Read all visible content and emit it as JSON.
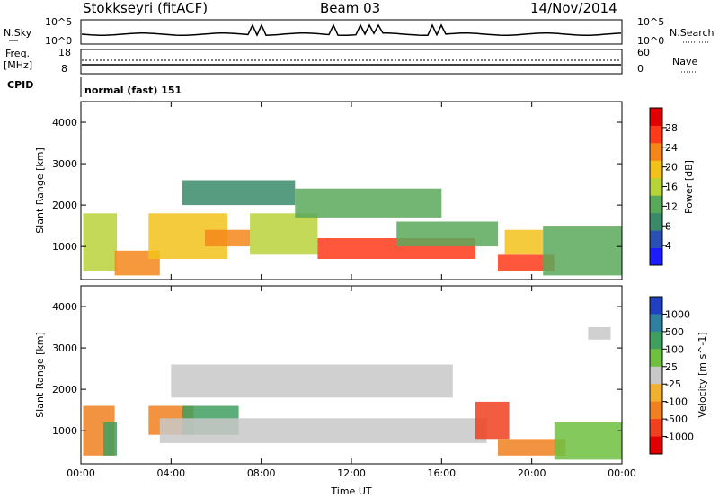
{
  "header": {
    "station": "Stokkseyri (fitACF)",
    "beam": "Beam 03",
    "date": "14/Nov/2014"
  },
  "noise_panel": {
    "left_label": "N.Sky",
    "right_label": "N.Search",
    "left_ticks": [
      "10^5",
      "10^0"
    ],
    "right_ticks": [
      "10^5",
      "10^0"
    ]
  },
  "freq_panel": {
    "left_label": "Freq.",
    "left_unit": "[MHz]",
    "right_label": "Nave",
    "left_ticks": [
      "18",
      "8"
    ],
    "right_ticks": [
      "60",
      "0"
    ]
  },
  "cpid": {
    "label": "CPID",
    "value": "normal (fast) 151"
  },
  "colors": {
    "power_scale": [
      "#1c1cff",
      "#2b4fb3",
      "#3a8a6a",
      "#5aa85a",
      "#b8d23a",
      "#f2c21a",
      "#f5871a",
      "#ff3a1a",
      "#e00000"
    ],
    "velocity_scale": [
      "#2040c0",
      "#2f7f9f",
      "#3f9f5f",
      "#6fc03f",
      "#c8c8c8",
      "#f0b030",
      "#f08020",
      "#f04020",
      "#e00000"
    ]
  },
  "chart_data": [
    {
      "type": "heatmap",
      "name": "power",
      "ylabel": "Slant Range [km]",
      "ylim": [
        200,
        4500
      ],
      "yticks": [
        "1000",
        "2000",
        "3000",
        "4000"
      ],
      "colorbar_label": "Power [dB]",
      "colorbar_ticks": [
        "4",
        "8",
        "12",
        "16",
        "20",
        "24",
        "28"
      ],
      "xticks": [
        "00:00",
        "04:00",
        "08:00",
        "12:00",
        "16:00",
        "20:00",
        "00:00"
      ],
      "regions": [
        {
          "x0": 0.1,
          "x1": 1.6,
          "y0": 400,
          "y1": 1800,
          "value": 16
        },
        {
          "x0": 1.5,
          "x1": 3.5,
          "y0": 300,
          "y1": 900,
          "value": 22
        },
        {
          "x0": 3.0,
          "x1": 6.5,
          "y0": 700,
          "y1": 1800,
          "value": 18
        },
        {
          "x0": 5.5,
          "x1": 7.5,
          "y0": 1000,
          "y1": 1400,
          "value": 24
        },
        {
          "x0": 4.5,
          "x1": 9.5,
          "y0": 2000,
          "y1": 2600,
          "value": 10
        },
        {
          "x0": 7.5,
          "x1": 10.5,
          "y0": 800,
          "y1": 1800,
          "value": 16
        },
        {
          "x0": 9.5,
          "x1": 16.0,
          "y0": 1700,
          "y1": 2400,
          "value": 12
        },
        {
          "x0": 10.5,
          "x1": 17.5,
          "y0": 700,
          "y1": 1200,
          "value": 26
        },
        {
          "x0": 14.0,
          "x1": 18.5,
          "y0": 1000,
          "y1": 1600,
          "value": 14
        },
        {
          "x0": 18.5,
          "x1": 21.0,
          "y0": 400,
          "y1": 800,
          "value": 27
        },
        {
          "x0": 18.8,
          "x1": 20.5,
          "y0": 800,
          "y1": 1400,
          "value": 20
        },
        {
          "x0": 20.5,
          "x1": 24.0,
          "y0": 300,
          "y1": 1500,
          "value": 12
        }
      ]
    },
    {
      "type": "heatmap",
      "name": "velocity",
      "ylabel": "Slant Range [km]",
      "xlabel": "Time UT",
      "ylim": [
        200,
        4500
      ],
      "yticks": [
        "1000",
        "2000",
        "3000",
        "4000"
      ],
      "colorbar_label": "Velocity [m s^-1]",
      "colorbar_ticks": [
        "1000",
        "500",
        "100",
        "25",
        "-25",
        "-100",
        "-500",
        "-1000"
      ],
      "xticks": [
        "00:00",
        "04:00",
        "08:00",
        "12:00",
        "16:00",
        "20:00",
        "00:00"
      ],
      "regions": [
        {
          "x0": 0.1,
          "x1": 1.5,
          "y0": 400,
          "y1": 1600,
          "value": -300
        },
        {
          "x0": 1.0,
          "x1": 1.6,
          "y0": 400,
          "y1": 1200,
          "value": 300
        },
        {
          "x0": 3.0,
          "x1": 5.0,
          "y0": 900,
          "y1": 1600,
          "value": -400
        },
        {
          "x0": 4.5,
          "x1": 7.0,
          "y0": 900,
          "y1": 1600,
          "value": 200
        },
        {
          "x0": 3.5,
          "x1": 18.0,
          "y0": 700,
          "y1": 1300,
          "value": 0
        },
        {
          "x0": 4.0,
          "x1": 16.5,
          "y0": 1800,
          "y1": 2600,
          "value": 0
        },
        {
          "x0": 17.5,
          "x1": 19.0,
          "y0": 800,
          "y1": 1700,
          "value": -800
        },
        {
          "x0": 18.5,
          "x1": 21.5,
          "y0": 400,
          "y1": 800,
          "value": -300
        },
        {
          "x0": 21.0,
          "x1": 24.0,
          "y0": 300,
          "y1": 1200,
          "value": 80
        },
        {
          "x0": 22.5,
          "x1": 23.5,
          "y0": 3200,
          "y1": 3500,
          "value": 0
        }
      ]
    }
  ]
}
